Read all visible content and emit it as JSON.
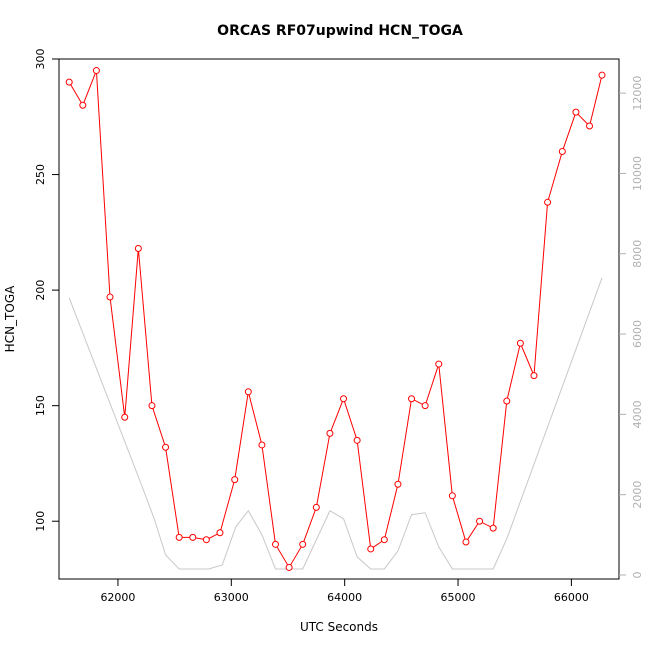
{
  "chart_data": {
    "type": "line",
    "title": "ORCAS RF07upwind HCN_TOGA",
    "xlabel": "UTC Seconds",
    "ylabel": "HCN_TOGA",
    "xlim": [
      61480,
      66420
    ],
    "ylim": [
      75,
      300
    ],
    "y2lim": [
      -100,
      12850
    ],
    "x_ticks": [
      62000,
      63000,
      64000,
      65000,
      66000
    ],
    "y_ticks": [
      100,
      150,
      200,
      250,
      300
    ],
    "y2_ticks": [
      0,
      2000,
      4000,
      6000,
      8000,
      10000,
      12000
    ],
    "colors": {
      "primary": "#ff0000",
      "secondary": "#c8c8c8",
      "axis": "#000000",
      "right_axis": "#b0b0b0"
    },
    "series": [
      {
        "axis": "left",
        "x": [
          61570,
          61690,
          61810,
          61930,
          62060,
          62180,
          62300,
          62420,
          62540,
          62660,
          62780,
          62900,
          63030,
          63150,
          63270,
          63390,
          63510,
          63630,
          63750,
          63870,
          63990,
          64110,
          64230,
          64350,
          64470,
          64590,
          64710,
          64830,
          64950,
          65070,
          65190,
          65310,
          65430,
          65550,
          65670,
          65790,
          65920,
          66040,
          66160,
          66270
        ],
        "values": [
          290,
          280,
          295,
          197,
          145,
          218,
          150,
          132,
          93,
          93,
          92,
          95,
          118,
          156,
          133,
          90,
          80,
          90,
          106,
          138,
          153,
          135,
          88,
          92,
          116,
          153,
          150,
          168,
          111,
          91,
          100,
          97,
          152,
          177,
          163,
          238,
          260,
          277,
          271,
          293
        ]
      },
      {
        "axis": "right",
        "x": [
          61570,
          62200,
          62320,
          62420,
          62540,
          62660,
          62800,
          62920,
          63040,
          63150,
          63270,
          63390,
          63510,
          63630,
          63870,
          63990,
          64110,
          64230,
          64350,
          64470,
          64590,
          64710,
          64830,
          64950,
          65070,
          65310,
          65430,
          66270
        ],
        "values": [
          6900,
          2300,
          1400,
          500,
          150,
          150,
          150,
          250,
          1200,
          1600,
          1000,
          150,
          150,
          150,
          1600,
          1400,
          450,
          150,
          150,
          600,
          1500,
          1550,
          700,
          150,
          150,
          150,
          900,
          7400
        ]
      }
    ]
  }
}
